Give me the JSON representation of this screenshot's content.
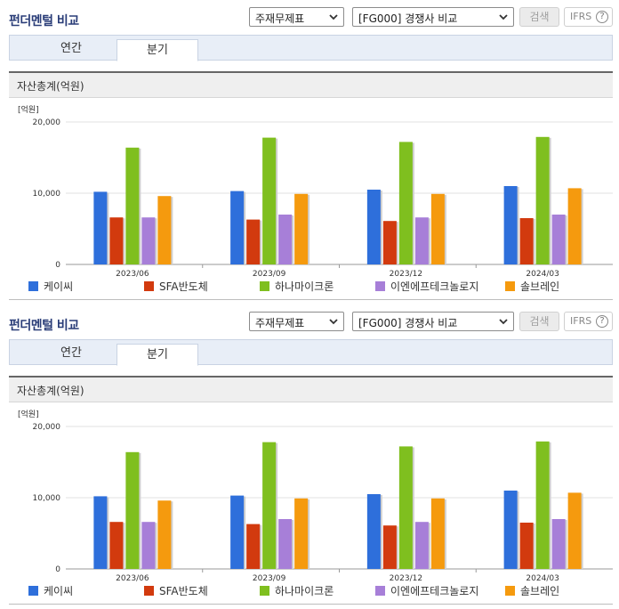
{
  "header": {
    "title": "펀더멘털 비교",
    "select_a": "주재무제표",
    "select_b": "[FG000] 경쟁사 비교",
    "search_label": "검색",
    "ifrs_label": "IFRS",
    "help_label": "?"
  },
  "tabs": [
    "연간",
    "분기"
  ],
  "section_title": "자산총계(억원)",
  "icons": {
    "dropdown": "chevron-down-icon",
    "help": "question-circle-icon"
  },
  "chart_data": {
    "type": "bar",
    "unit": "[억원]",
    "categories": [
      "2023/06",
      "2023/09",
      "2023/12",
      "2024/03"
    ],
    "ylim": [
      0,
      20000
    ],
    "yticks": [
      "0",
      "10,000",
      "20,000"
    ],
    "grid": true,
    "legend": "bottom",
    "series": [
      {
        "name": "케이씨",
        "color": "#2e6fdb",
        "values": [
          10200,
          10300,
          10500,
          11000
        ]
      },
      {
        "name": "SFA반도체",
        "color": "#d23a0e",
        "values": [
          6600,
          6300,
          6100,
          6500
        ]
      },
      {
        "name": "하나마이크론",
        "color": "#7fbf1f",
        "values": [
          16400,
          17800,
          17200,
          17900
        ]
      },
      {
        "name": "이엔에프테크놀로지",
        "color": "#a77fd8",
        "values": [
          6600,
          7000,
          6600,
          7000
        ]
      },
      {
        "name": "솔브레인",
        "color": "#f59a0e",
        "values": [
          9600,
          9900,
          9900,
          10700
        ]
      }
    ]
  }
}
